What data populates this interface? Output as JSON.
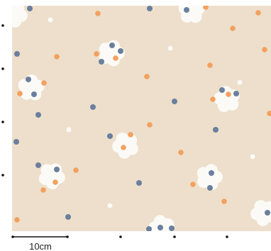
{
  "scale_label": "10cm"
}
